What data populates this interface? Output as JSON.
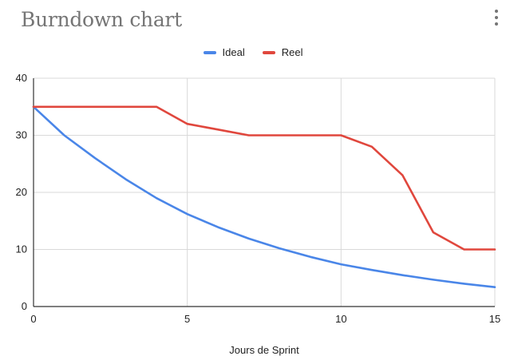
{
  "chart_data": {
    "type": "line",
    "title": "Burndown chart",
    "xlabel": "Jours de Sprint",
    "ylabel": "",
    "xlim": [
      0,
      15
    ],
    "ylim": [
      0,
      40
    ],
    "x_ticks": [
      0,
      5,
      10,
      15
    ],
    "y_ticks": [
      0,
      10,
      20,
      30,
      40
    ],
    "grid": true,
    "legend_position": "top",
    "series": [
      {
        "name": "Ideal",
        "color": "#4a86e8",
        "x": [
          0,
          1,
          2,
          3,
          4,
          5,
          6,
          7,
          8,
          9,
          10,
          11,
          12,
          13,
          14,
          15
        ],
        "y": [
          35,
          30,
          26,
          22.3,
          19,
          16.2,
          13.9,
          11.9,
          10.2,
          8.7,
          7.4,
          6.4,
          5.5,
          4.7,
          4.0,
          3.4
        ]
      },
      {
        "name": "Reel",
        "color": "#e0473d",
        "x": [
          0,
          1,
          2,
          3,
          4,
          5,
          6,
          7,
          8,
          9,
          10,
          11,
          12,
          13,
          14,
          15
        ],
        "y": [
          35,
          35,
          35,
          35,
          35,
          32,
          31,
          30,
          30,
          30,
          30,
          28,
          23,
          13,
          10,
          10
        ]
      }
    ]
  },
  "menu_icon": "more-vert-icon"
}
